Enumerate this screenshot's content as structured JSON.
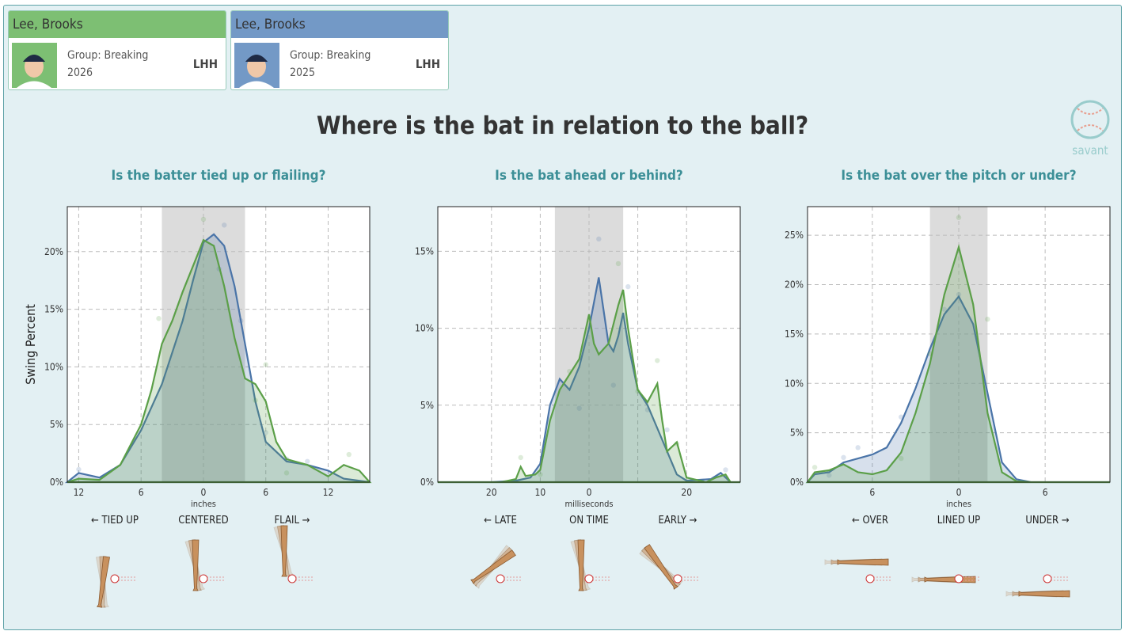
{
  "cards": [
    {
      "name": "Lee, Brooks",
      "group": "Group: Breaking",
      "year": "2026",
      "hand": "LHH",
      "color": "#7dbf73"
    },
    {
      "name": "Lee, Brooks",
      "group": "Group: Breaking",
      "year": "2025",
      "hand": "LHH",
      "color": "#7399c6"
    }
  ],
  "title": "Where is the bat in relation to the ball?",
  "logo": "savant",
  "chart_data": [
    {
      "type": "area",
      "title": "Is the batter tied up or flailing?",
      "y_label": "Swing Percent",
      "x_label": "inches",
      "direction_labels": [
        "← TIED UP",
        "CENTERED",
        "FLAIL →"
      ],
      "band": [
        -4,
        4
      ],
      "xlim": [
        -13.1,
        16
      ],
      "xticks": [
        {
          "value": -12,
          "label": "12"
        },
        {
          "value": -6,
          "label": "6"
        },
        0,
        6,
        12
      ],
      "ylim": [
        0,
        23.9
      ],
      "yticks": [
        {
          "value": 0,
          "label": "0%"
        },
        {
          "value": 5,
          "label": "5%"
        },
        {
          "value": 10,
          "label": "10%"
        },
        {
          "value": 15,
          "label": "15%"
        },
        {
          "value": 20,
          "label": "20%"
        }
      ],
      "grid": true,
      "series": [
        {
          "color": "#4a74a8",
          "x": [
            -13.1,
            -12,
            -10,
            -8,
            -6,
            -4,
            -2,
            -1,
            0,
            1,
            2,
            3,
            4,
            5,
            6,
            8,
            10,
            12,
            13.5,
            16
          ],
          "values": [
            0,
            0.8,
            0.4,
            1.5,
            4.5,
            8.5,
            14,
            17.5,
            20.8,
            21.5,
            20.5,
            17,
            12,
            7,
            3.5,
            1.8,
            1.5,
            1,
            0.3,
            0
          ],
          "points": {
            "x": [
              2,
              1.5,
              3.6,
              6,
              8,
              10,
              -12
            ],
            "y": [
              22.3,
              18.5,
              14,
              4.3,
              2,
              1.8,
              1.1
            ]
          }
        },
        {
          "color": "#5b9f48",
          "x": [
            -13.1,
            -12,
            -10,
            -8,
            -6,
            -5,
            -4,
            -3,
            -2,
            0,
            1,
            2,
            3,
            4,
            5,
            6,
            7,
            8,
            10,
            12,
            13.5,
            15,
            16
          ],
          "values": [
            0,
            0.3,
            0.2,
            1.5,
            5,
            8,
            12,
            14,
            16.5,
            21,
            20.5,
            17,
            12.5,
            9,
            8.5,
            7,
            3.5,
            2,
            1.5,
            0.5,
            1.5,
            1,
            0
          ],
          "points": {
            "x": [
              -4.3,
              0,
              6,
              8,
              14,
              5
            ],
            "y": [
              14.2,
              22.8,
              10.2,
              0.8,
              2.4,
              7.1
            ]
          }
        }
      ]
    },
    {
      "type": "area",
      "title": "Is the bat ahead or behind?",
      "x_label": "milliseconds",
      "direction_labels": [
        "← LATE",
        "ON TIME",
        "EARLY →"
      ],
      "band": [
        -7,
        7
      ],
      "xlim": [
        -31,
        31
      ],
      "xticks": [
        {
          "value": -20,
          "label": "20"
        },
        {
          "value": -10,
          "label": "10"
        },
        0,
        {
          "value": 10,
          "label": null
        },
        20
      ],
      "ylim": [
        0,
        17.9
      ],
      "yticks": [
        {
          "value": 0,
          "label": "0%"
        },
        {
          "value": 5,
          "label": "5%"
        },
        {
          "value": 10,
          "label": "10%"
        },
        {
          "value": 15,
          "label": "15%"
        }
      ],
      "grid": true,
      "series": [
        {
          "color": "#4a74a8",
          "x": [
            -31,
            -20,
            -15,
            -12,
            -10,
            -8,
            -6,
            -4,
            -2,
            0,
            2,
            4,
            5,
            6,
            7,
            8,
            10,
            12,
            14,
            16,
            18,
            20,
            25,
            27,
            29,
            31
          ],
          "values": [
            0,
            0,
            0.1,
            0.3,
            1.2,
            5,
            6.7,
            6,
            7.5,
            10,
            13.3,
            9,
            8.5,
            9.5,
            11,
            9,
            6,
            5,
            3.5,
            2,
            0.5,
            0.1,
            0.2,
            0.6,
            0,
            0
          ],
          "points": {
            "x": [
              2,
              5,
              8,
              -2,
              12,
              16,
              28
            ],
            "y": [
              15.8,
              6.3,
              12.7,
              4.8,
              4.7,
              3.4,
              0.8
            ]
          }
        },
        {
          "color": "#5b9f48",
          "x": [
            -31,
            -18,
            -15,
            -14,
            -13,
            -11,
            -10,
            -8,
            -6,
            -4,
            -2,
            0,
            1,
            2,
            4,
            6,
            7,
            8,
            10,
            12,
            14,
            15,
            16,
            18,
            20,
            24,
            26,
            28,
            29,
            31
          ],
          "values": [
            0,
            0,
            0.2,
            1,
            0.4,
            0.5,
            0.8,
            4,
            6,
            7,
            8,
            10.9,
            9,
            8.3,
            9,
            11.5,
            12.5,
            10,
            6,
            5.2,
            6.4,
            4,
            2,
            2.6,
            0.3,
            0,
            0.3,
            0.5,
            0,
            0
          ],
          "points": {
            "x": [
              -14,
              -10,
              6,
              14,
              10,
              18,
              -4
            ],
            "y": [
              1.6,
              0.5,
              14.2,
              7.9,
              5.9,
              2.5,
              7.2
            ]
          }
        }
      ]
    },
    {
      "type": "area",
      "title": "Is the bat over the pitch or under?",
      "x_label": "inches",
      "direction_labels": [
        "← OVER",
        "LINED UP",
        "UNDER →"
      ],
      "band": [
        -2,
        2
      ],
      "xlim": [
        -10.5,
        10.5
      ],
      "xticks": [
        {
          "value": -6,
          "label": "6"
        },
        0,
        6
      ],
      "ylim": [
        0,
        27.9
      ],
      "yticks": [
        {
          "value": 0,
          "label": "0%"
        },
        {
          "value": 5,
          "label": "5%"
        },
        {
          "value": 10,
          "label": "10%"
        },
        {
          "value": 15,
          "label": "15%"
        },
        {
          "value": 20,
          "label": "20%"
        },
        {
          "value": 25,
          "label": "25%"
        }
      ],
      "grid": true,
      "series": [
        {
          "color": "#4a74a8",
          "x": [
            -10.5,
            -10,
            -9,
            -8,
            -6,
            -5,
            -4,
            -3,
            -2,
            -1,
            0,
            1,
            2,
            3,
            4,
            5,
            10.5
          ],
          "values": [
            0,
            0.8,
            1,
            2,
            2.8,
            3.5,
            6,
            9.5,
            13.5,
            17,
            18.8,
            16,
            9,
            2,
            0.3,
            0,
            0
          ],
          "points": {
            "x": [
              0,
              -1,
              -4,
              -7,
              -8,
              -9
            ],
            "y": [
              19,
              17.5,
              6.6,
              3.5,
              2.5,
              0.7
            ]
          }
        },
        {
          "color": "#5b9f48",
          "x": [
            -10.5,
            -10,
            -9,
            -8,
            -7,
            -6,
            -5,
            -4,
            -3,
            -2,
            -1,
            0,
            1,
            2,
            3,
            4,
            5,
            10.5
          ],
          "values": [
            0,
            1,
            1.2,
            1.8,
            1,
            0.8,
            1.2,
            3,
            7,
            12,
            19,
            23.8,
            18,
            7,
            1,
            0.1,
            0,
            0
          ],
          "points": {
            "x": [
              0,
              2,
              -10,
              -2,
              -4
            ],
            "y": [
              26.8,
              16.5,
              1.5,
              13,
              2.4
            ]
          }
        }
      ]
    }
  ]
}
